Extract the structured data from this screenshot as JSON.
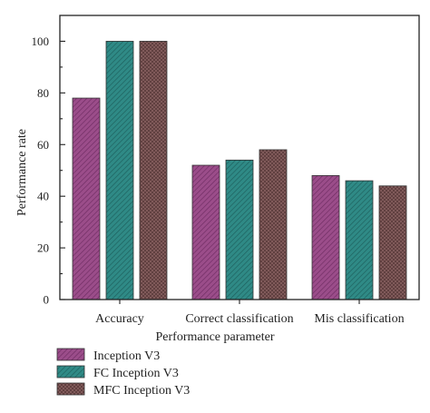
{
  "chart_data": {
    "type": "bar",
    "categories": [
      "Accuracy",
      "Correct classification",
      "Mis classification"
    ],
    "series": [
      {
        "name": "Inception V3",
        "values": [
          78,
          52,
          48
        ],
        "color": "#9b4d8a"
      },
      {
        "name": "FC Inception V3",
        "values": [
          100,
          54,
          46
        ],
        "color": "#2f8a86"
      },
      {
        "name": "MFC Inception V3",
        "values": [
          100,
          58,
          44
        ],
        "color": "#8a6262"
      }
    ],
    "title": "",
    "xlabel": "Performance parameter",
    "ylabel": "Performance rate",
    "ylim": [
      0,
      110
    ],
    "yticks": [
      0,
      20,
      40,
      60,
      80,
      100
    ],
    "grid": false,
    "legend_position": "bottom-left"
  }
}
